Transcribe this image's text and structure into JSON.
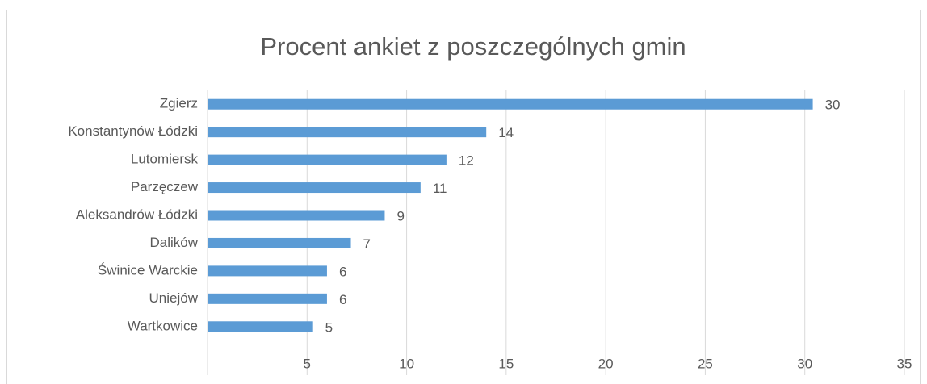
{
  "chart_data": {
    "type": "bar",
    "orientation": "horizontal",
    "title": "Procent ankiet z poszczególnych gmin",
    "categories": [
      "Zgierz",
      "Konstantynów Łódzki",
      "Lutomiersk",
      "Parzęczew",
      "Aleksandrów Łódzki",
      "Dalików",
      "Świnice Warckie",
      "Uniejów",
      "Wartkowice"
    ],
    "values": [
      30.4,
      14,
      12,
      10.7,
      8.9,
      7.2,
      6,
      6,
      5.3
    ],
    "value_labels": [
      "30",
      "14",
      "12",
      "11",
      "9",
      "7",
      "6",
      "6",
      "5"
    ],
    "color": "#5b9bd5",
    "xlim": [
      0,
      35
    ],
    "xticks": [
      5,
      10,
      15,
      20,
      25,
      30,
      35
    ],
    "grid": true
  }
}
